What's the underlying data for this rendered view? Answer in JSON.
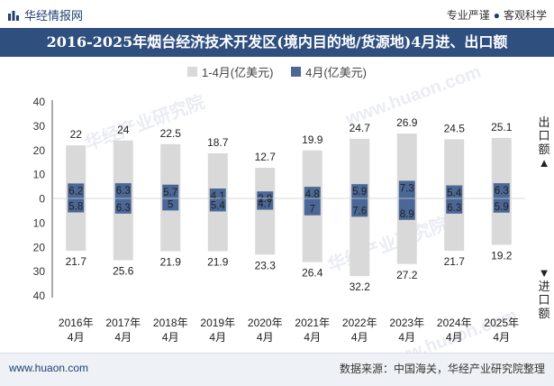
{
  "brand": {
    "name": "华经情报网",
    "logo_icon": "bar-chart-logo-icon"
  },
  "tags": {
    "left": "专业严谨",
    "right": "客观科学"
  },
  "title": "2016-2025年烟台经济技术开发区(境内目的地/货源地)4月进、出口额",
  "side_labels": {
    "export": "出口额",
    "import": "进口额"
  },
  "footer": {
    "site": "www.huaon.com",
    "source": "数据来源：中国海关，华经产业研究院整理"
  },
  "watermarks": [
    "华经产业研究院",
    "www.huaon.com"
  ],
  "colors": {
    "cumulative": "#d9d9d9",
    "month": "#4a6796",
    "title_bg": "#2f4f7f",
    "axis": "#555555"
  },
  "chart_data": {
    "type": "bar",
    "categories": [
      "2016年\n4月",
      "2017年\n4月",
      "2018年\n4月",
      "2019年\n4月",
      "2020年\n4月",
      "2021年\n4月",
      "2022年\n4月",
      "2023年\n4月",
      "2024年\n4月",
      "2025年\n4月"
    ],
    "series": [
      {
        "name": "1-4月(亿美元)",
        "export": [
          22,
          24,
          22.5,
          18.7,
          12.7,
          19.9,
          24.7,
          26.9,
          24.5,
          25.1
        ],
        "import": [
          21.7,
          25.6,
          21.9,
          21.9,
          23.3,
          26.4,
          32.2,
          27.2,
          21.7,
          19.2
        ]
      },
      {
        "name": "4月(亿美元)",
        "export": [
          6.2,
          6.3,
          5.7,
          4.1,
          2.9,
          4.8,
          5.9,
          7.3,
          5.4,
          6.3
        ],
        "import": [
          5.8,
          6.3,
          5,
          5.4,
          4.7,
          7,
          7.6,
          8.9,
          6.3,
          5.9
        ]
      }
    ],
    "yticks": [
      40,
      30,
      20,
      10,
      0,
      10,
      20,
      30,
      40
    ],
    "ylim": [
      -40,
      40
    ],
    "legend_position": "top-center",
    "grid": false
  }
}
